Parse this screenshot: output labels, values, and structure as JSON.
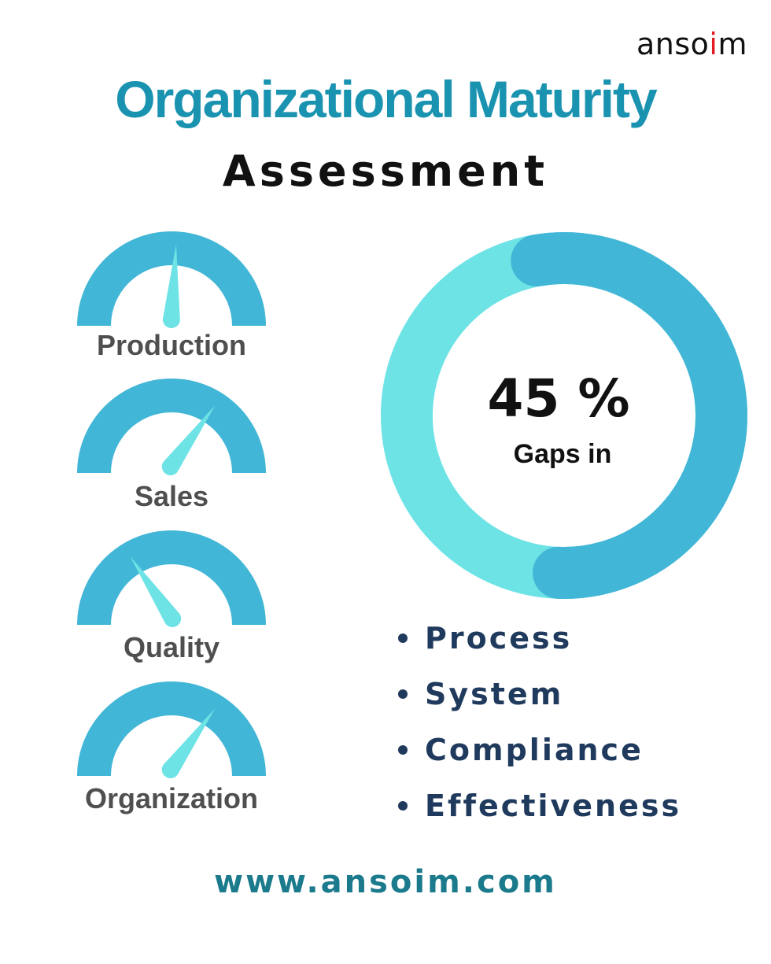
{
  "brand": {
    "name_prefix": "anso",
    "name_highlight": "i",
    "name_suffix": "m"
  },
  "header": {
    "title": "Organizational Maturity",
    "subtitle": "Assessment"
  },
  "gauges": [
    {
      "label": "Production",
      "needle_value": 0.52
    },
    {
      "label": "Sales",
      "needle_value": 0.7
    },
    {
      "label": "Quality",
      "needle_value": 0.31
    },
    {
      "label": "Organization",
      "needle_value": 0.7
    }
  ],
  "donut": {
    "value_text": "45 %",
    "caption": "Gaps in",
    "percent": 45
  },
  "gap_areas": [
    "Process",
    "System",
    "Compliance",
    "Effectiveness"
  ],
  "footer": {
    "url": "www.ansoim.com"
  },
  "colors": {
    "title": "#1a93b0",
    "gauge_arc": "#42b6d6",
    "needle": "#6ee3e6",
    "donut_main": "#42b6d6",
    "donut_light": "#6ee3e6",
    "bullet_text": "#1f3a5c",
    "url": "#1b7a8c",
    "logo_accent": "#e21b23"
  }
}
